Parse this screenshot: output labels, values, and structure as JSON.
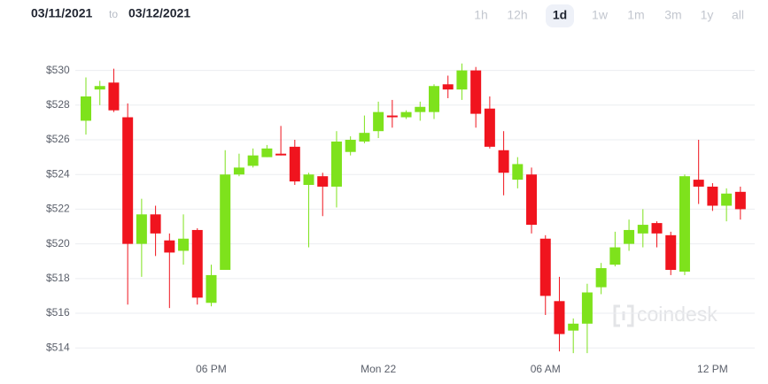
{
  "header": {
    "from": "03/11/2021",
    "separator": "to",
    "to": "03/12/2021"
  },
  "ranges": [
    "1h",
    "12h",
    "1d",
    "1w",
    "1m",
    "3m",
    "1y",
    "all"
  ],
  "selected_range": 2,
  "chart_data": {
    "type": "candlestick",
    "watermark": "coindesk",
    "categories": [
      null,
      null,
      null,
      null,
      null,
      null,
      null,
      null,
      null,
      "06 PM",
      null,
      null,
      null,
      null,
      null,
      null,
      null,
      null,
      null,
      null,
      null,
      "Mon 22",
      null,
      null,
      null,
      null,
      null,
      null,
      null,
      null,
      null,
      null,
      null,
      "06 AM",
      null,
      null,
      null,
      null,
      null,
      null,
      null,
      null,
      null,
      null,
      null,
      "12 PM",
      null,
      null
    ],
    "open": [
      527.1,
      528.9,
      529.3,
      527.3,
      520.0,
      521.7,
      520.2,
      519.6,
      520.8,
      516.6,
      518.5,
      524.0,
      524.5,
      525.0,
      525.2,
      525.6,
      523.4,
      523.9,
      523.3,
      525.3,
      525.9,
      526.5,
      527.4,
      527.3,
      527.6,
      527.6,
      529.2,
      528.9,
      530.0,
      527.8,
      525.4,
      523.7,
      524.0,
      520.3,
      516.7,
      515.0,
      515.4,
      517.5,
      518.8,
      520.0,
      520.6,
      521.2,
      520.5,
      518.4,
      523.7,
      523.3,
      522.2,
      523.0
    ],
    "high": [
      529.6,
      529.4,
      530.1,
      528.1,
      522.6,
      522.2,
      520.6,
      521.7,
      520.9,
      518.8,
      525.4,
      525.2,
      525.5,
      525.7,
      526.8,
      526.0,
      524.1,
      524.1,
      526.5,
      526.2,
      527.4,
      528.2,
      528.3,
      527.7,
      528.2,
      529.2,
      529.7,
      530.4,
      530.2,
      528.5,
      526.5,
      525.0,
      524.4,
      520.5,
      518.1,
      515.7,
      517.7,
      518.9,
      520.7,
      521.4,
      522.0,
      521.3,
      520.7,
      524.0,
      526.0,
      523.5,
      523.2,
      523.3
    ],
    "low": [
      526.3,
      528.0,
      527.6,
      516.5,
      518.1,
      519.3,
      516.3,
      518.8,
      516.5,
      516.4,
      518.5,
      523.9,
      524.4,
      525.0,
      525.1,
      523.4,
      519.8,
      521.6,
      522.1,
      525.1,
      525.8,
      526.1,
      526.7,
      527.2,
      527.1,
      527.2,
      528.4,
      528.3,
      526.7,
      525.5,
      522.8,
      523.2,
      520.6,
      515.9,
      513.8,
      513.7,
      513.7,
      517.1,
      518.7,
      519.6,
      519.8,
      519.8,
      518.2,
      518.2,
      522.3,
      521.9,
      521.3,
      521.4
    ],
    "close": [
      528.5,
      529.1,
      527.7,
      520.0,
      521.7,
      520.6,
      519.5,
      520.3,
      516.9,
      518.2,
      524.0,
      524.4,
      525.1,
      525.5,
      525.1,
      523.6,
      524.0,
      523.3,
      525.9,
      526.0,
      526.4,
      527.6,
      527.3,
      527.6,
      527.9,
      529.1,
      528.9,
      530.0,
      527.5,
      525.6,
      524.1,
      524.6,
      521.1,
      517.0,
      514.8,
      515.4,
      517.2,
      518.6,
      519.8,
      520.8,
      521.1,
      520.6,
      518.5,
      523.9,
      523.3,
      522.2,
      522.9,
      522.0
    ],
    "up_color": "#7ee21c",
    "down_color": "#f0141e",
    "ylim": [
      513.4,
      531
    ],
    "yticks": [
      {
        "value": 514,
        "label": "$514"
      },
      {
        "value": 516,
        "label": "$516"
      },
      {
        "value": 518,
        "label": "$518"
      },
      {
        "value": 520,
        "label": "$520"
      },
      {
        "value": 522,
        "label": "$522"
      },
      {
        "value": 524,
        "label": "$524"
      },
      {
        "value": 526,
        "label": "$526"
      },
      {
        "value": 528,
        "label": "$528"
      },
      {
        "value": 530,
        "label": "$530"
      }
    ],
    "grid": true
  }
}
